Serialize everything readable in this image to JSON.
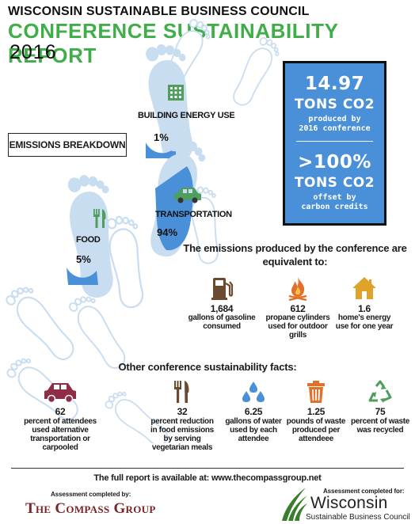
{
  "header": {
    "org": "WISCONSIN SUSTAINABLE BUSINESS COUNCIL",
    "title": "CONFERENCE SUSTAINABILITY REPORT",
    "year": "2016"
  },
  "emissions_breakdown_label": "EMISSIONS BREAKDOWN",
  "breakdown": [
    {
      "label": "BUILDING ENERGY USE",
      "pct": "1%",
      "icon": "building-icon",
      "fill_fraction": 0.01
    },
    {
      "label": "TRANSPORTATION",
      "pct": "94%",
      "icon": "car-icon",
      "fill_fraction": 0.94
    },
    {
      "label": "FOOD",
      "pct": "5%",
      "icon": "fork-knife-icon",
      "fill_fraction": 0.05
    }
  ],
  "summary": {
    "produced_value": "14.97",
    "produced_unit": "TONS CO2",
    "produced_desc_1": "produced by",
    "produced_desc_2": "2016 conference",
    "offset_value": ">100%",
    "offset_unit": "TONS CO2",
    "offset_desc_1": "offset by",
    "offset_desc_2": "carbon credits"
  },
  "equivalents": {
    "heading_1": "The emissions produced by the conference are",
    "heading_2": "equivalent to:",
    "items": [
      {
        "value": "1,684",
        "line1": "gallons of gasoline",
        "line2": "consumed",
        "line3": "",
        "icon": "gas-pump-icon"
      },
      {
        "value": "612",
        "line1": "propane cylinders",
        "line2": "used for outdoor",
        "line3": "grills",
        "icon": "flame-icon"
      },
      {
        "value": "1.6",
        "line1": "home's energy",
        "line2": "use for one year",
        "line3": "",
        "icon": "house-icon"
      }
    ]
  },
  "facts": {
    "heading": "Other conference sustainability facts:",
    "items": [
      {
        "value": "62",
        "lines": [
          "percent of attendees",
          "used alternative",
          "transportation or",
          "carpooled"
        ],
        "icon": "car-icon"
      },
      {
        "value": "32",
        "lines": [
          "percent reduction",
          "in food emissions",
          "by serving",
          "vegetarian meals"
        ],
        "icon": "fork-knife-icon"
      },
      {
        "value": "6.25",
        "lines": [
          "gallons of water",
          "used by each",
          "attendee",
          ""
        ],
        "icon": "water-drops-icon"
      },
      {
        "value": "1.25",
        "lines": [
          "pounds of waste",
          "produced per",
          "attendeee",
          ""
        ],
        "icon": "trash-can-icon"
      },
      {
        "value": "75",
        "lines": [
          "percent of waste",
          "was recycled",
          "",
          ""
        ],
        "icon": "recycle-icon"
      }
    ]
  },
  "footer": {
    "report_line": "The full report is available at: www.thecompassgroup.net",
    "assessed_by_label": "Assessment completed by:",
    "assessed_by_name": "The Compass Group",
    "assessed_for_label": "Assessment completed for:",
    "assessed_for_name": "Wisconsin",
    "assessed_for_sub": "Sustainable Business Council"
  },
  "colors": {
    "green": "#3fae49",
    "blue": "#4a90d9",
    "light_blue": "#c9ddf1",
    "icon_green": "#4f9e5e",
    "icon_brown": "#6b4a2e",
    "icon_orange": "#e0702a",
    "icon_gold": "#e0a32a",
    "icon_maroon": "#8e2d45"
  }
}
